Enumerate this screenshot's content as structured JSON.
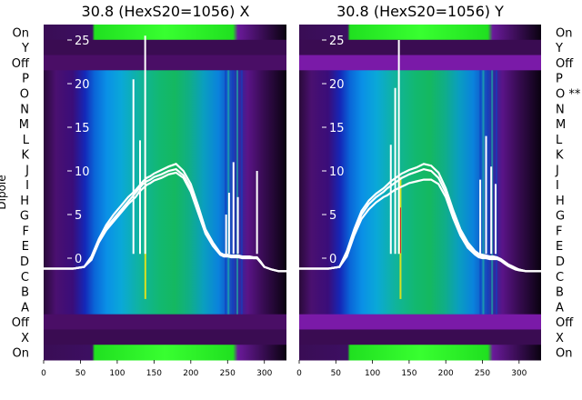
{
  "chart_data": [
    {
      "type": "heatmap",
      "title": "30.8 (HexS20=1056) X",
      "xlabel": "",
      "ylabel": "Dipole",
      "xlim": [
        0,
        330
      ],
      "x_ticks": [
        0,
        50,
        100,
        150,
        200,
        250,
        300
      ],
      "row_labels": [
        "On",
        "Y",
        "Off",
        "P",
        "O",
        "N",
        "M",
        "L",
        "K",
        "J",
        "I",
        "H",
        "G",
        "F",
        "E",
        "D",
        "C",
        "B",
        "A",
        "Off",
        "X",
        "On"
      ],
      "overlay_ticks": [
        25,
        20,
        15,
        10,
        5,
        0
      ],
      "overlay_ylim": [
        -2,
        27
      ],
      "overlay_series": [
        {
          "x": [
            0,
            20,
            40,
            55,
            65,
            75,
            85,
            95,
            105,
            115,
            120,
            125,
            130,
            135,
            140,
            145,
            150,
            160,
            170,
            180,
            190,
            200,
            210,
            220,
            230,
            240,
            245,
            250,
            255,
            260,
            265,
            270,
            275,
            280,
            285,
            290,
            295,
            300,
            310,
            320,
            330
          ],
          "y": [
            -1.2,
            -1.2,
            -1.2,
            -1.0,
            0.0,
            2.0,
            3.5,
            4.5,
            5.5,
            6.5,
            7.0,
            7.5,
            8.0,
            8.5,
            8.8,
            9.0,
            9.3,
            9.6,
            10.0,
            10.2,
            9.5,
            8.0,
            5.5,
            3.0,
            1.5,
            0.5,
            0.3,
            0.3,
            0.2,
            0.2,
            0.2,
            0.1,
            0.1,
            0.1,
            0.0,
            0.0,
            -0.5,
            -1.0,
            -1.3,
            -1.5,
            -1.5
          ]
        },
        {
          "x": [
            0,
            20,
            40,
            55,
            65,
            75,
            85,
            95,
            105,
            115,
            120,
            125,
            130,
            135,
            140,
            145,
            150,
            160,
            170,
            180,
            190,
            200,
            210,
            220,
            230,
            240,
            245,
            250,
            255,
            260,
            265,
            270,
            275,
            280,
            285,
            290,
            295,
            300,
            310,
            320,
            330
          ],
          "y": [
            -1.2,
            -1.2,
            -1.2,
            -1.0,
            0.2,
            2.2,
            3.8,
            5.0,
            6.0,
            7.0,
            7.4,
            7.8,
            8.3,
            8.8,
            9.2,
            9.4,
            9.7,
            10.1,
            10.5,
            10.8,
            10.0,
            8.5,
            6.0,
            3.3,
            1.8,
            0.6,
            0.4,
            0.4,
            0.3,
            0.3,
            0.3,
            0.2,
            0.2,
            0.2,
            0.1,
            0.1,
            -0.4,
            -1.0,
            -1.3,
            -1.5,
            -1.5
          ]
        },
        {
          "x": [
            0,
            20,
            40,
            55,
            65,
            75,
            85,
            95,
            105,
            115,
            120,
            125,
            130,
            135,
            140,
            145,
            150,
            160,
            170,
            180,
            190,
            200,
            210,
            220,
            230,
            240,
            245,
            250,
            255,
            260,
            265,
            270,
            275,
            280,
            285,
            290,
            295,
            300,
            310,
            320,
            330
          ],
          "y": [
            -1.2,
            -1.2,
            -1.2,
            -1.0,
            -0.2,
            1.8,
            3.2,
            4.2,
            5.2,
            6.2,
            6.6,
            7.0,
            7.6,
            8.0,
            8.4,
            8.6,
            8.9,
            9.2,
            9.6,
            9.8,
            9.2,
            7.6,
            5.2,
            2.8,
            1.4,
            0.4,
            0.2,
            0.2,
            0.1,
            0.1,
            0.1,
            0.0,
            0.0,
            0.0,
            0.0,
            0.0,
            -0.5,
            -1.0,
            -1.3,
            -1.5,
            -1.5
          ]
        }
      ],
      "overlay_spikes": [
        {
          "x": 122,
          "y": 20.5
        },
        {
          "x": 131,
          "y": 13.5
        },
        {
          "x": 138,
          "y": 25.5
        },
        {
          "x": 248,
          "y": 5.0
        },
        {
          "x": 252,
          "y": 7.5
        },
        {
          "x": 258,
          "y": 11.0
        },
        {
          "x": 264,
          "y": 7.0
        },
        {
          "x": 290,
          "y": 10.0
        }
      ]
    },
    {
      "type": "heatmap",
      "title": "30.8 (HexS20=1056) Y",
      "xlabel": "",
      "ylabel": "",
      "xlim": [
        0,
        330
      ],
      "x_ticks": [
        0,
        50,
        100,
        150,
        200,
        250,
        300
      ],
      "row_labels": [
        "On",
        "Y",
        "Off",
        "P",
        "O **",
        "N",
        "M",
        "L",
        "K",
        "J",
        "I",
        "H",
        "G",
        "F",
        "E",
        "D",
        "C",
        "B",
        "A",
        "Off",
        "X",
        "On"
      ],
      "overlay_ticks": [
        25,
        20,
        15,
        10,
        5,
        0
      ],
      "overlay_ylim": [
        -2,
        27
      ],
      "overlay_series": [
        {
          "x": [
            0,
            20,
            40,
            55,
            65,
            75,
            85,
            95,
            105,
            115,
            120,
            125,
            130,
            135,
            140,
            145,
            150,
            160,
            170,
            180,
            190,
            200,
            210,
            220,
            230,
            240,
            245,
            250,
            255,
            260,
            265,
            270,
            275,
            280,
            285,
            290,
            295,
            300,
            310,
            320,
            330
          ],
          "y": [
            -1.2,
            -1.2,
            -1.2,
            -1.0,
            0.5,
            3.0,
            5.0,
            6.2,
            7.0,
            7.6,
            8.0,
            8.3,
            8.6,
            8.9,
            9.2,
            9.4,
            9.6,
            9.9,
            10.2,
            10.0,
            9.2,
            7.5,
            5.0,
            3.0,
            1.5,
            0.6,
            0.3,
            0.2,
            0.1,
            0.0,
            0.0,
            0.0,
            -0.2,
            -0.5,
            -0.8,
            -1.0,
            -1.2,
            -1.3,
            -1.5,
            -1.5,
            -1.5
          ]
        },
        {
          "x": [
            0,
            20,
            40,
            55,
            65,
            75,
            85,
            95,
            105,
            115,
            120,
            125,
            130,
            135,
            140,
            145,
            150,
            160,
            170,
            180,
            190,
            200,
            210,
            220,
            230,
            240,
            245,
            250,
            255,
            260,
            265,
            270,
            275,
            280,
            285,
            290,
            295,
            300,
            310,
            320,
            330
          ],
          "y": [
            -1.2,
            -1.2,
            -1.2,
            -1.0,
            0.8,
            3.3,
            5.4,
            6.6,
            7.4,
            8.0,
            8.4,
            8.8,
            9.1,
            9.4,
            9.7,
            9.9,
            10.1,
            10.4,
            10.8,
            10.6,
            9.8,
            8.0,
            5.5,
            3.3,
            1.8,
            0.8,
            0.5,
            0.4,
            0.3,
            0.2,
            0.2,
            0.1,
            -0.1,
            -0.4,
            -0.7,
            -0.9,
            -1.1,
            -1.3,
            -1.5,
            -1.5,
            -1.5
          ]
        },
        {
          "x": [
            0,
            20,
            40,
            55,
            65,
            75,
            85,
            95,
            105,
            115,
            120,
            125,
            130,
            135,
            140,
            145,
            150,
            160,
            170,
            180,
            190,
            200,
            210,
            220,
            230,
            240,
            245,
            250,
            255,
            260,
            265,
            270,
            275,
            280,
            285,
            290,
            295,
            300,
            310,
            320,
            330
          ],
          "y": [
            -1.2,
            -1.2,
            -1.2,
            -1.0,
            0.2,
            2.6,
            4.5,
            5.6,
            6.4,
            7.0,
            7.2,
            7.5,
            7.8,
            8.0,
            8.2,
            8.4,
            8.6,
            8.8,
            9.0,
            9.0,
            8.5,
            7.0,
            4.6,
            2.6,
            1.2,
            0.4,
            0.1,
            0.0,
            0.0,
            -0.1,
            -0.1,
            -0.1,
            -0.3,
            -0.6,
            -0.9,
            -1.1,
            -1.3,
            -1.4,
            -1.5,
            -1.5,
            -1.5
          ]
        }
      ],
      "overlay_spikes": [
        {
          "x": 125,
          "y": 13.0
        },
        {
          "x": 131,
          "y": 19.5
        },
        {
          "x": 136,
          "y": 25.0
        },
        {
          "x": 247,
          "y": 9.0
        },
        {
          "x": 255,
          "y": 14.0
        },
        {
          "x": 262,
          "y": 10.5
        },
        {
          "x": 268,
          "y": 8.5
        }
      ]
    }
  ]
}
